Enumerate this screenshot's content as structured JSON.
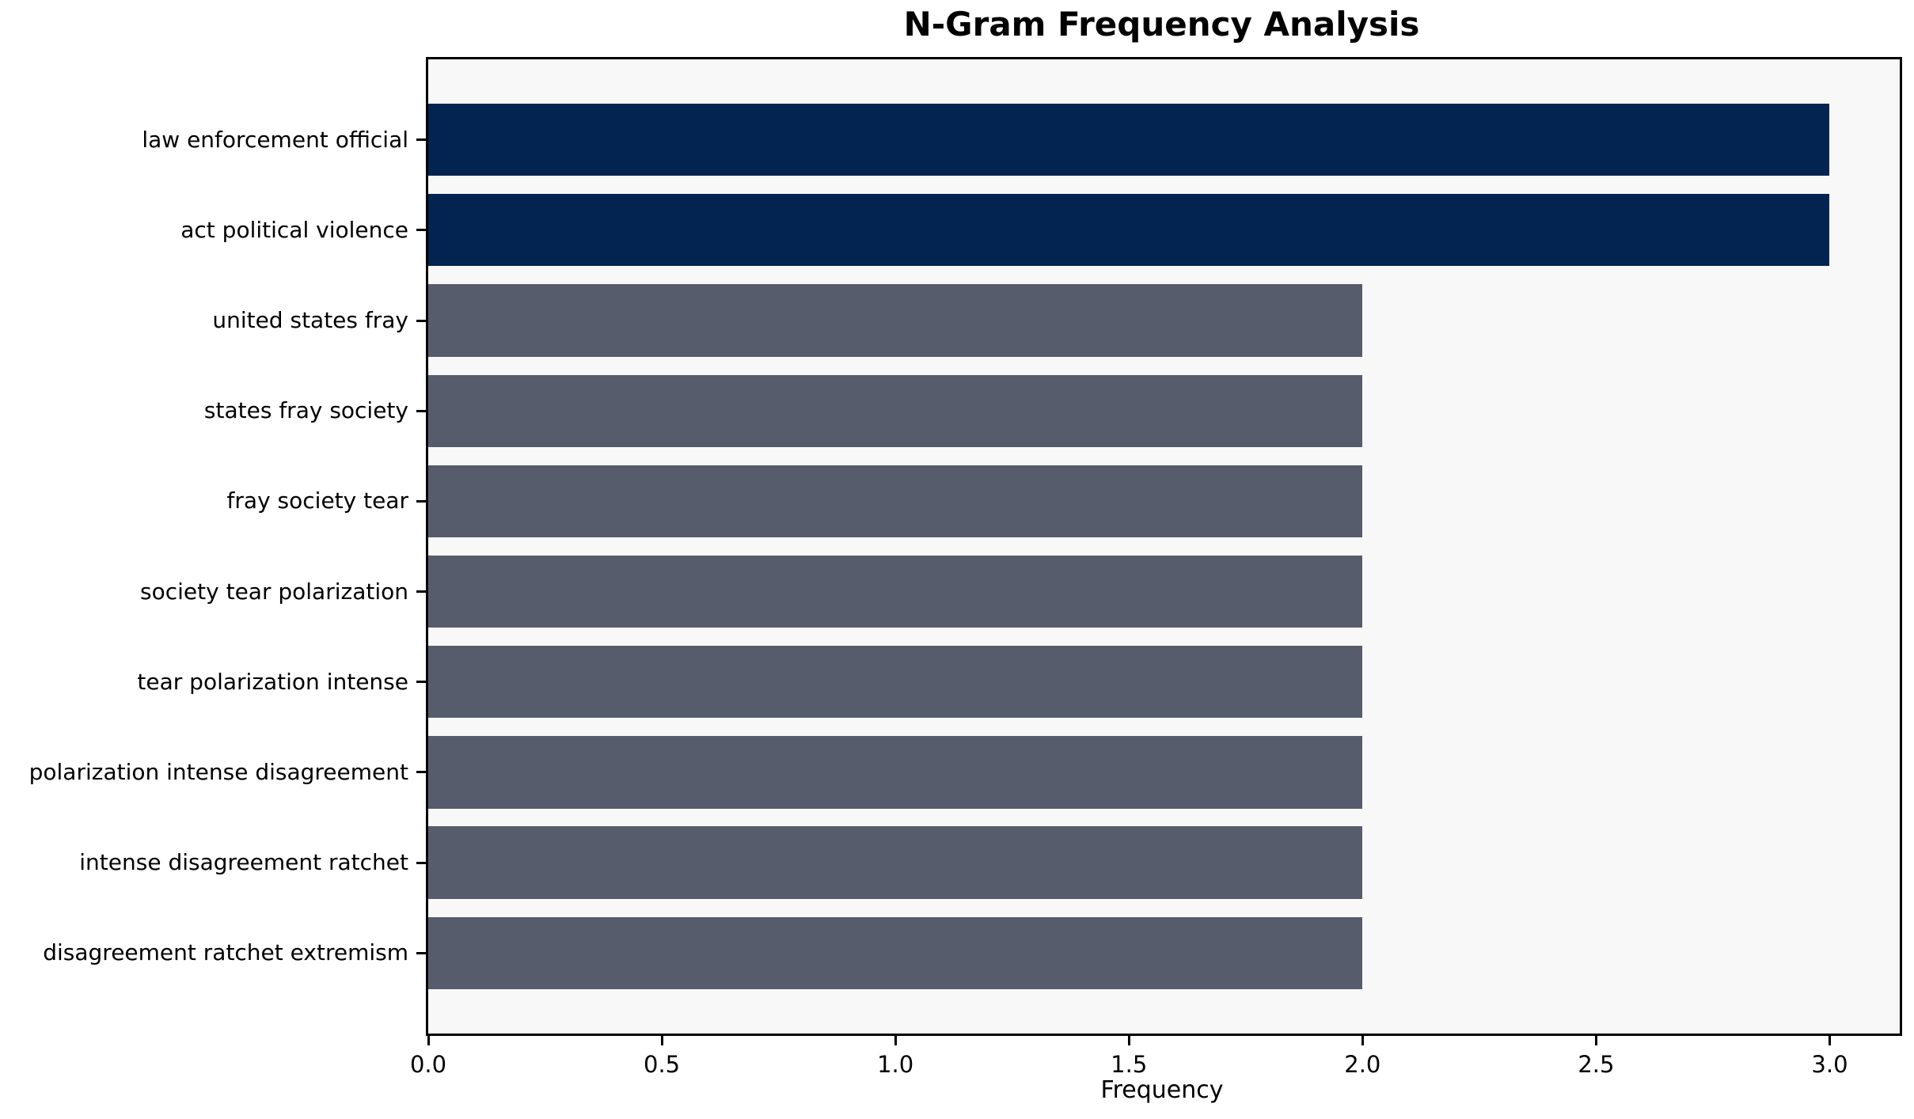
{
  "chart_data": {
    "type": "bar",
    "orientation": "horizontal",
    "title": "N-Gram Frequency Analysis",
    "xlabel": "Frequency",
    "ylabel": "",
    "categories": [
      "law enforcement official",
      "act political violence",
      "united states fray",
      "states fray society",
      "fray society tear",
      "society tear polarization",
      "tear polarization intense",
      "polarization intense disagreement",
      "intense disagreement ratchet",
      "disagreement ratchet extremism"
    ],
    "values": [
      3,
      3,
      2,
      2,
      2,
      2,
      2,
      2,
      2,
      2
    ],
    "bar_colors": [
      "#032451",
      "#032451",
      "#565C6B",
      "#565C6B",
      "#565C6B",
      "#565C6B",
      "#565C6B",
      "#565C6B",
      "#565C6B",
      "#565C6B"
    ],
    "xticks": [
      "0.0",
      "0.5",
      "1.0",
      "1.5",
      "2.0",
      "2.5",
      "3.0"
    ],
    "xtick_values": [
      0,
      0.5,
      1,
      1.5,
      2,
      2.5,
      3
    ],
    "xlim": [
      0,
      3.15
    ],
    "grid": false,
    "legend": null,
    "colors": {
      "highlight_bar": "#032451",
      "default_bar": "#565C6B",
      "plot_background": "#f8f8f8",
      "figure_background": "#ffffff",
      "axis_line": "#000000",
      "text": "#000000"
    }
  }
}
